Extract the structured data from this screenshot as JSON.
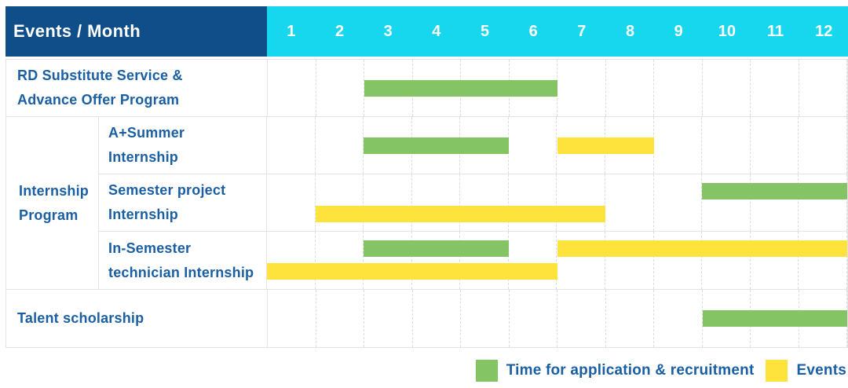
{
  "colors": {
    "header_bg": "#104e8a",
    "months_bg": "#16d7ee",
    "application": "#85c464",
    "event": "#ffe33d",
    "label_text": "#1a5fa4",
    "grid": "#e3e3e3",
    "grid_dashed": "#dcdcdc"
  },
  "header": {
    "title": "Events / Month",
    "months": [
      "1",
      "2",
      "3",
      "4",
      "5",
      "6",
      "7",
      "8",
      "9",
      "10",
      "11",
      "12"
    ]
  },
  "chart_data": {
    "type": "gantt",
    "xlabel": "Month",
    "x_range": [
      1,
      12
    ],
    "bar_kinds": {
      "application": "Time for application & recruitment",
      "event": "Events"
    },
    "rows": [
      {
        "group": null,
        "label": "RD Substitute Service &\nAdvance Offer Program",
        "bars": [
          {
            "kind": "application",
            "start_month": 3,
            "end_month": 6,
            "lane": "center"
          }
        ]
      },
      {
        "group": "Internship\nProgram",
        "label": "A+Summer\nInternship",
        "bars": [
          {
            "kind": "application",
            "start_month": 3,
            "end_month": 5,
            "lane": "center"
          },
          {
            "kind": "event",
            "start_month": 7,
            "end_month": 8,
            "lane": "center"
          }
        ]
      },
      {
        "group": "Internship\nProgram",
        "label": "Semester project\nInternship",
        "bars": [
          {
            "kind": "application",
            "start_month": 10,
            "end_month": 12,
            "lane": "top"
          },
          {
            "kind": "event",
            "start_month": 2,
            "end_month": 7,
            "lane": "bottom"
          }
        ]
      },
      {
        "group": "Internship\nProgram",
        "label": "In-Semester\ntechnician Internship",
        "bars": [
          {
            "kind": "application",
            "start_month": 3,
            "end_month": 5,
            "lane": "top"
          },
          {
            "kind": "event",
            "start_month": 7,
            "end_month": 12,
            "lane": "top"
          },
          {
            "kind": "event",
            "start_month": 1,
            "end_month": 6,
            "lane": "bottom"
          }
        ]
      },
      {
        "group": null,
        "label": "Talent scholarship",
        "bars": [
          {
            "kind": "application",
            "start_month": 10,
            "end_month": 12,
            "lane": "center"
          }
        ]
      }
    ]
  },
  "legend": [
    {
      "kind": "application",
      "label": "Time for application & recruitment"
    },
    {
      "kind": "event",
      "label": "Events"
    }
  ]
}
